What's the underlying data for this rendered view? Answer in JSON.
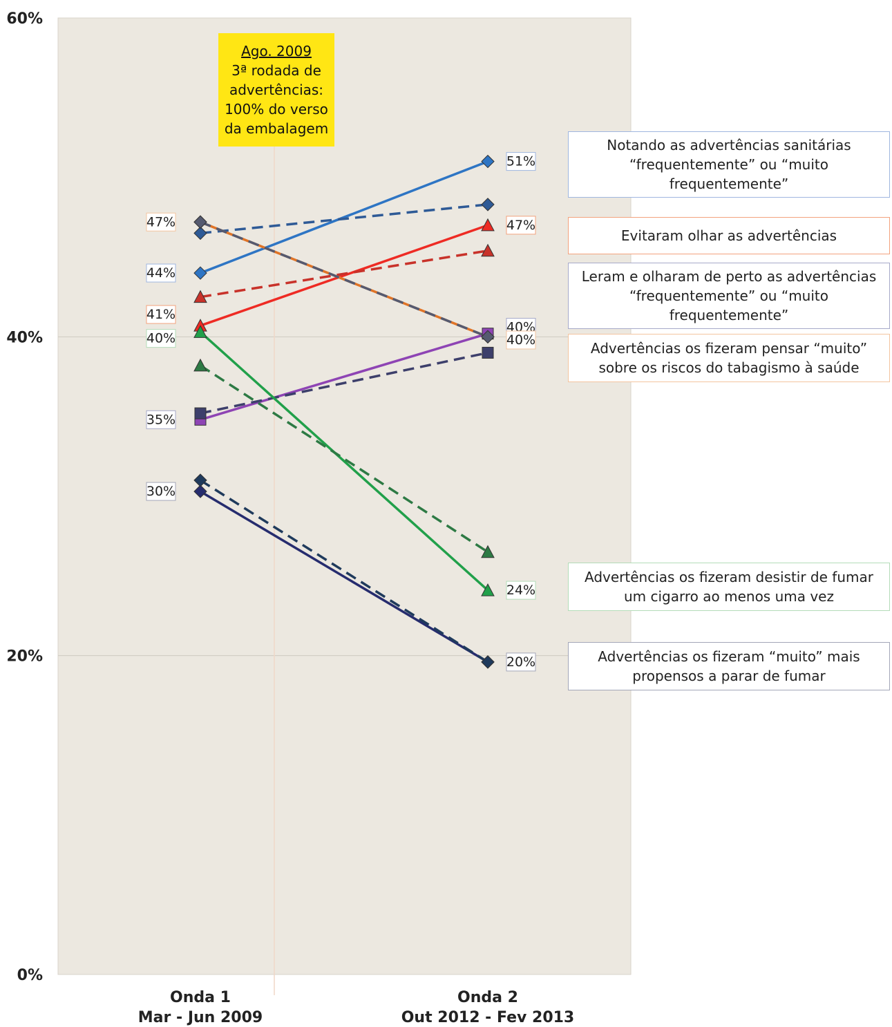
{
  "chart_data": {
    "type": "line",
    "categories": [
      "Onda 1\nMar - Jun 2009",
      "Onda 2\nOut 2012 - Fev 2013"
    ],
    "ylim": [
      0,
      60
    ],
    "yticks": [
      "0%",
      "20%",
      "40%",
      "60%"
    ],
    "grid": true,
    "annotation": {
      "title": "Ago. 2009",
      "text": "3ª rodada de\nadvertências:\n100% do verso\nda embalagem"
    },
    "series": [
      {
        "group": 0,
        "style": "solid",
        "color": "#2e75c4",
        "marker": "diamond",
        "values": [
          44,
          51
        ],
        "labels": [
          "44%",
          "51%"
        ]
      },
      {
        "group": 0,
        "style": "dashed",
        "color": "#2e5a96",
        "marker": "diamond",
        "values": [
          46.5,
          48.3
        ],
        "labels": [
          "",
          ""
        ]
      },
      {
        "group": 1,
        "style": "solid",
        "color": "#ee2b24",
        "marker": "triangle",
        "values": [
          40.7,
          47
        ],
        "labels": [
          "",
          "47%"
        ]
      },
      {
        "group": 1,
        "style": "dashed",
        "color": "#c8322a",
        "marker": "triangle",
        "values": [
          42.5,
          45.4
        ],
        "labels": [
          "",
          ""
        ]
      },
      {
        "group": 2,
        "style": "solid",
        "color": "#8e44b4",
        "marker": "square",
        "values": [
          34.8,
          40.2
        ],
        "labels": [
          "35%",
          "40%"
        ]
      },
      {
        "group": 2,
        "style": "dashed",
        "color": "#3d3f6b",
        "marker": "square",
        "values": [
          35.2,
          39
        ],
        "labels": [
          "",
          ""
        ]
      },
      {
        "group": 3,
        "style": "solid",
        "color": "#e07427",
        "marker": "diamond",
        "values": [
          47.2,
          40
        ],
        "labels": [
          "47%",
          "40%"
        ]
      },
      {
        "group": 3,
        "style": "dashed",
        "color": "#555a70",
        "marker": "diamond",
        "values": [
          47.2,
          40
        ],
        "labels": [
          "",
          ""
        ]
      },
      {
        "group": 4,
        "style": "solid",
        "color": "#21a04a",
        "marker": "triangle",
        "values": [
          40.3,
          24.1
        ],
        "labels": [
          "40%",
          "24%"
        ]
      },
      {
        "group": 4,
        "style": "dashed",
        "color": "#2d7a44",
        "marker": "triangle",
        "values": [
          38.2,
          26.5
        ],
        "labels": [
          "",
          ""
        ]
      },
      {
        "group": 5,
        "style": "solid",
        "color": "#262c6e",
        "marker": "diamond",
        "values": [
          30.3,
          19.6
        ],
        "labels": [
          "30%",
          "20%"
        ]
      },
      {
        "group": 5,
        "style": "dashed",
        "color": "#1f3a5c",
        "marker": "diamond",
        "values": [
          31.0,
          19.6
        ],
        "labels": [
          "",
          ""
        ]
      }
    ],
    "extra_labels": [
      {
        "group": 1,
        "text": "41%"
      }
    ],
    "legend": [
      {
        "text": "Notando as advertências sanitárias\n“frequentemente” ou “muito\nfrequentemente”",
        "border": "#9fb6df"
      },
      {
        "text": "Evitaram olhar as advertências",
        "border": "#f3a27d"
      },
      {
        "text": "Leram e olharam de perto as advertências\n“frequentemente” ou “muito\nfrequentemente”",
        "border": "#a6a9c9"
      },
      {
        "text": "Advertências os fizeram pensar “muito”\nsobre os riscos do tabagismo à saúde",
        "border": "#f3c49f"
      },
      {
        "text": "Advertências os fizeram desistir de fumar\num cigarro ao menos uma vez",
        "border": "#b3dcb8"
      },
      {
        "text": "Advertências os fizeram “muito” mais\npropensos a parar de fumar",
        "border": "#a3a6b8"
      }
    ]
  }
}
